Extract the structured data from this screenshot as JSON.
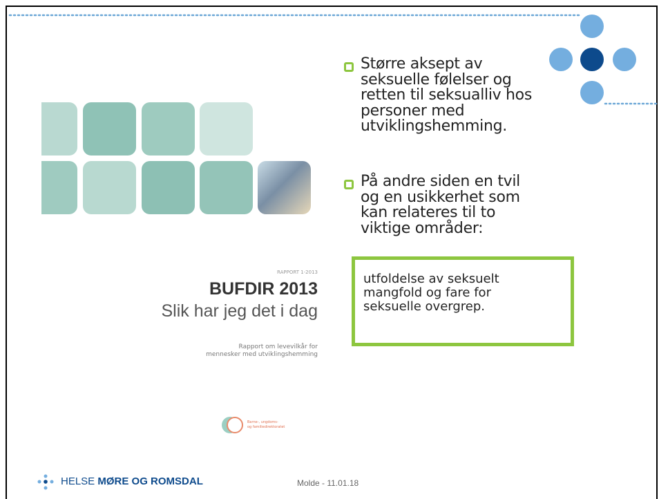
{
  "cover": {
    "report_number": "RAPPORT 1-2013",
    "title": "BUFDIR 2013",
    "subtitle": "Slik har jeg det i dag",
    "description": [
      "Rapport om levevilkår for",
      "mennesker med utviklingshemming"
    ],
    "logo_text": [
      "Barne-, ungdoms-",
      "og familiedirektoratet"
    ]
  },
  "bullets": [
    [
      "Større aksept av",
      "seksuelle følelser og",
      "retten til seksualliv hos",
      "personer med",
      "utviklingshemming."
    ],
    [
      "På andre siden en tvil",
      "og en usikkerhet som",
      "kan relateres til to",
      "viktige områder:"
    ]
  ],
  "box": [
    "utfoldelse av seksuelt",
    "mangfold og fare for",
    "seksuelle overgrep."
  ],
  "footer": {
    "brand": [
      "HELSE",
      "MØRE OG ROMSDAL"
    ],
    "date": "Molde - 11.01.18"
  }
}
